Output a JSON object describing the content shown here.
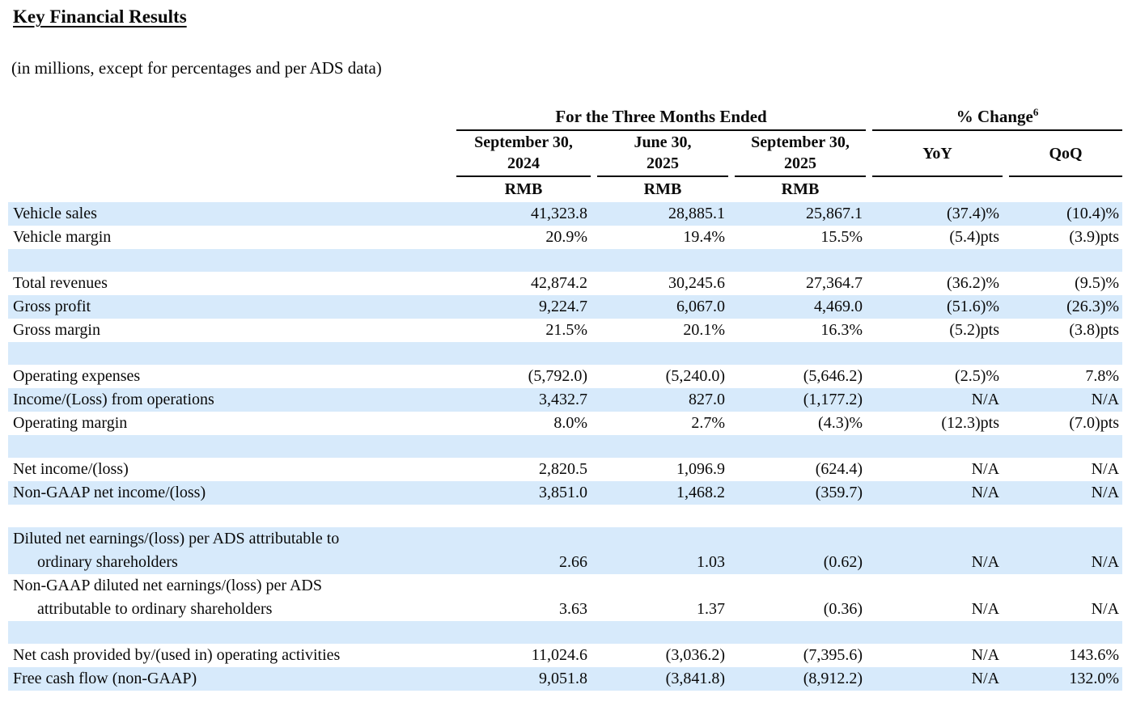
{
  "title": "Key Financial Results",
  "subtitle": "(in millions, except for percentages and per ADS data)",
  "table": {
    "group_headers": {
      "periods_label": "For the Three Months Ended",
      "change_label": "% Change",
      "change_footnote": "6"
    },
    "period_headers": [
      {
        "line1": "September 30,",
        "line2": "2024",
        "unit": "RMB"
      },
      {
        "line1": "June 30,",
        "line2": "2025",
        "unit": "RMB"
      },
      {
        "line1": "September 30,",
        "line2": "2025",
        "unit": "RMB"
      }
    ],
    "change_headers": {
      "yoy": "YoY",
      "qoq": "QoQ"
    },
    "rows": [
      {
        "label": "Vehicle sales",
        "values": [
          "41,323.8",
          "28,885.1",
          "25,867.1",
          "(37.4)%",
          "(10.4)%"
        ]
      },
      {
        "label": "Vehicle margin",
        "values": [
          "20.9%",
          "19.4%",
          "15.5%",
          "(5.4)pts",
          "(3.9)pts"
        ]
      },
      {
        "blank": true
      },
      {
        "label": "Total revenues",
        "values": [
          "42,874.2",
          "30,245.6",
          "27,364.7",
          "(36.2)%",
          "(9.5)%"
        ]
      },
      {
        "label": "Gross profit",
        "values": [
          "9,224.7",
          "6,067.0",
          "4,469.0",
          "(51.6)%",
          "(26.3)%"
        ]
      },
      {
        "label": "Gross margin",
        "values": [
          "21.5%",
          "20.1%",
          "16.3%",
          "(5.2)pts",
          "(3.8)pts"
        ]
      },
      {
        "blank": true
      },
      {
        "label": "Operating expenses",
        "values": [
          "(5,792.0)",
          "(5,240.0)",
          "(5,646.2)",
          "(2.5)%",
          "7.8%"
        ]
      },
      {
        "label": "Income/(Loss) from operations",
        "values": [
          "3,432.7",
          "827.0",
          "(1,177.2)",
          "N/A",
          "N/A"
        ]
      },
      {
        "label": "Operating margin",
        "values": [
          "8.0%",
          "2.7%",
          "(4.3)%",
          "(12.3)pts",
          "(7.0)pts"
        ]
      },
      {
        "blank": true
      },
      {
        "label": "Net income/(loss)",
        "values": [
          "2,820.5",
          "1,096.9",
          "(624.4)",
          "N/A",
          "N/A"
        ]
      },
      {
        "label": "Non-GAAP net income/(loss)",
        "values": [
          "3,851.0",
          "1,468.2",
          "(359.7)",
          "N/A",
          "N/A"
        ]
      },
      {
        "blank": true
      },
      {
        "two_line": true,
        "label_line1": "Diluted net earnings/(loss) per ADS attributable to",
        "label_line2": "ordinary shareholders",
        "values": [
          "2.66",
          "1.03",
          "(0.62)",
          "N/A",
          "N/A"
        ]
      },
      {
        "two_line": true,
        "label_line1": "Non-GAAP diluted net earnings/(loss) per ADS",
        "label_line2": "attributable to ordinary shareholders",
        "values": [
          "3.63",
          "1.37",
          "(0.36)",
          "N/A",
          "N/A"
        ]
      },
      {
        "blank": true
      },
      {
        "label": "Net cash provided by/(used in) operating activities",
        "values": [
          "11,024.6",
          "(3,036.2)",
          "(7,395.6)",
          "N/A",
          "143.6%"
        ]
      },
      {
        "label": "Free cash flow (non-GAAP)",
        "values": [
          "9,051.8",
          "(3,841.8)",
          "(8,912.2)",
          "N/A",
          "132.0%"
        ]
      }
    ],
    "colors": {
      "stripe": "#D7EAFB",
      "text": "#0a0a0a",
      "rule": "#0a0a0a"
    }
  }
}
